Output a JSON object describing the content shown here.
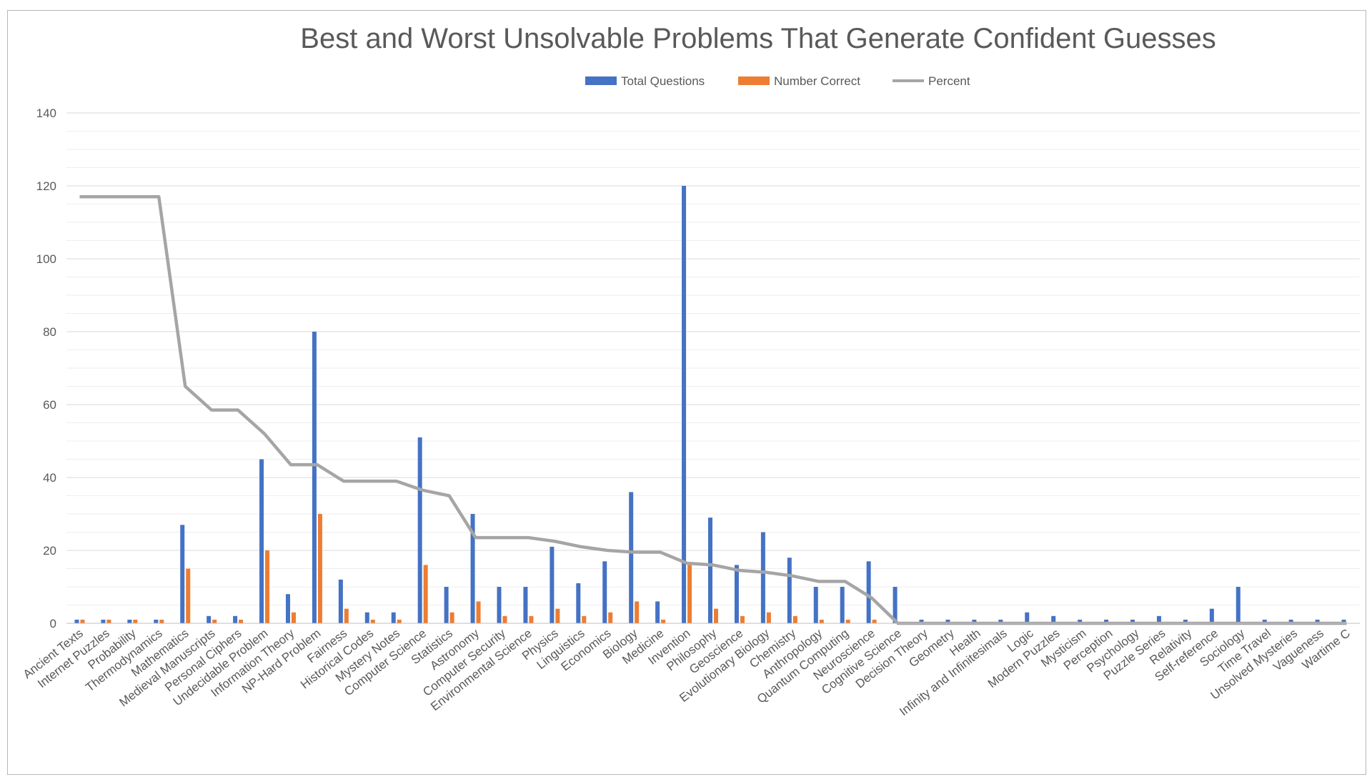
{
  "chart_data": {
    "type": "bar",
    "title": "Best and Worst Unsolvable Problems That Generate Confident Guesses",
    "xlabel": "",
    "ylabel": "",
    "ylim": [
      0,
      140
    ],
    "y_ticks": [
      0,
      20,
      40,
      60,
      80,
      100,
      120,
      140
    ],
    "grid": true,
    "legend_position": "top",
    "categories": [
      "Ancient Texts",
      "Internet Puzzles",
      "Probability",
      "Thermodynamics",
      "Mathematics",
      "Medieval Manuscripts",
      "Personal Ciphers",
      "Undecidable Problem",
      "Information Theory",
      "NP-Hard Problem",
      "Fairness",
      "Historical Codes",
      "Mystery Notes",
      "Computer Science",
      "Statistics",
      "Astronomy",
      "Computer Security",
      "Environmental Science",
      "Physics",
      "Linguistics",
      "Economics",
      "Biology",
      "Medicine",
      "Invention",
      "Philosophy",
      "Geoscience",
      "Evolutionary Biology",
      "Chemistry",
      "Anthropology",
      "Quantum Computing",
      "Neuroscience",
      "Cognitive Science",
      "Decision Theory",
      "Geometry",
      "Health",
      "Infinity and Infinitesimals",
      "Logic",
      "Modern Puzzles",
      "Mysticism",
      "Perception",
      "Psychology",
      "Puzzle Series",
      "Relativity",
      "Self-reference",
      "Sociology",
      "Time Travel",
      "Unsolved Mysteries",
      "Vagueness",
      "Wartime C"
    ],
    "series": [
      {
        "name": "Total Questions",
        "type": "bar",
        "color": "#4472C4",
        "values": [
          1,
          1,
          1,
          1,
          27,
          2,
          2,
          45,
          8,
          80,
          12,
          3,
          3,
          51,
          10,
          30,
          10,
          10,
          21,
          11,
          17,
          36,
          6,
          120,
          29,
          16,
          25,
          18,
          10,
          10,
          17,
          10,
          1,
          1,
          1,
          1,
          3,
          2,
          1,
          1,
          1,
          2,
          1,
          4,
          10,
          1,
          1,
          1,
          1
        ]
      },
      {
        "name": "Number Correct",
        "type": "bar",
        "color": "#ED7D31",
        "values": [
          1,
          1,
          1,
          1,
          15,
          1,
          1,
          20,
          3,
          30,
          4,
          1,
          1,
          16,
          3,
          6,
          2,
          2,
          4,
          2,
          3,
          6,
          1,
          16,
          4,
          2,
          3,
          2,
          1,
          1,
          1,
          0,
          0,
          0,
          0,
          0,
          0,
          0,
          0,
          0,
          0,
          0,
          0,
          0,
          0,
          0,
          0,
          0,
          0
        ]
      },
      {
        "name": "Percent",
        "type": "line",
        "color": "#A5A5A5",
        "values": [
          117,
          117,
          117,
          117,
          65,
          58.5,
          58.5,
          52,
          43.5,
          43.5,
          39,
          39,
          39,
          36.5,
          35,
          23.5,
          23.5,
          23.5,
          22.5,
          21,
          20,
          19.5,
          19.5,
          16.5,
          16,
          14.5,
          14,
          13,
          11.5,
          11.5,
          7,
          0,
          0,
          0,
          0,
          0,
          0,
          0,
          0,
          0,
          0,
          0,
          0,
          0,
          0,
          0,
          0,
          0,
          0
        ]
      }
    ]
  }
}
